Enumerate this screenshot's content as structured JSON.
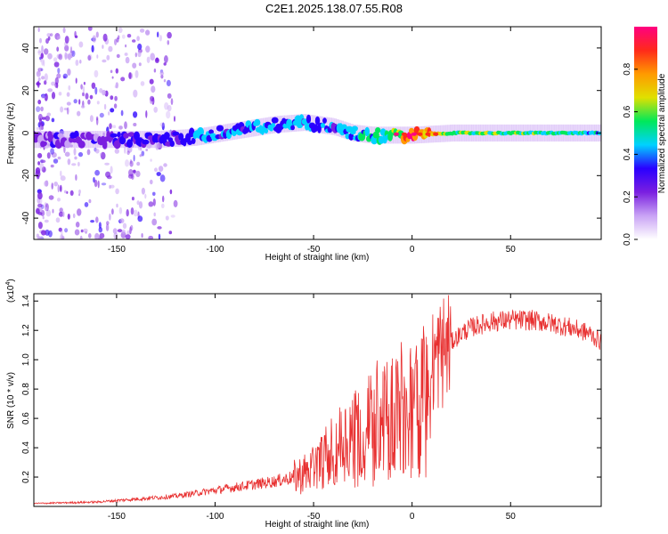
{
  "title": "C2E1.2025.138.07.55.R08",
  "colors": {
    "snr_line": "#e83030",
    "spectro_ridge": "#00d84a",
    "spectro_scatter": "#7a1fe0"
  },
  "chart_data": [
    {
      "type": "heatmap",
      "name": "spectrogram",
      "xlabel": "Height of straight line (km)",
      "ylabel": "Frequency (Hz)",
      "xlim": [
        -192,
        96
      ],
      "ylim": [
        -50,
        50
      ],
      "xticks": [
        -150,
        -100,
        -50,
        0,
        50
      ],
      "yticks": [
        -40,
        -20,
        0,
        20,
        40
      ],
      "colorbar": {
        "label": "Normalized spectral amplitude",
        "range": [
          0,
          1
        ],
        "ticks": [
          "0.0",
          "0.2",
          "0.4",
          "0.6",
          "0.8"
        ],
        "tick_values": [
          0.0,
          0.2,
          0.4,
          0.6,
          0.8
        ],
        "stops": [
          "#ffffff",
          "#c9a3f5",
          "#7a1fe0",
          "#2a00ff",
          "#00d2ff",
          "#00e85a",
          "#e0e000",
          "#ff9a00",
          "#ff2a1a",
          "#ff0080"
        ]
      },
      "ridge": {
        "x": [
          -190,
          -170,
          -150,
          -130,
          -110,
          -90,
          -70,
          -55,
          -40,
          -30,
          -20,
          -10,
          0,
          20,
          40,
          60,
          80,
          96
        ],
        "y": [
          -3,
          -3,
          -3,
          -3,
          -2,
          1,
          4,
          5,
          3,
          0,
          -1,
          -1,
          -1,
          0,
          0,
          0,
          0,
          0
        ],
        "amplitude": [
          0.2,
          0.2,
          0.25,
          0.3,
          0.35,
          0.35,
          0.4,
          0.35,
          0.35,
          0.4,
          0.45,
          0.55,
          0.9,
          0.55,
          0.55,
          0.55,
          0.5,
          0.45
        ]
      },
      "scatter_extent_x": [
        -190,
        -120
      ]
    },
    {
      "type": "line",
      "name": "snr",
      "xlabel": "Height of straight line (km)",
      "ylabel": "SNR (10 * v/v)",
      "y_multiplier": "(x10",
      "y_multiplier_exp": "4",
      "y_multiplier_close": ")",
      "xlim": [
        -192,
        96
      ],
      "ylim": [
        0,
        1.45
      ],
      "xticks": [
        -150,
        -100,
        -50,
        0,
        50
      ],
      "yticks": [
        "0.2",
        "0.4",
        "0.6",
        "0.8",
        "1.0",
        "1.2",
        "1.4"
      ],
      "ytick_values": [
        0.2,
        0.4,
        0.6,
        0.8,
        1.0,
        1.2,
        1.4
      ],
      "envelope": {
        "x": [
          -192,
          -160,
          -150,
          -140,
          -120,
          -100,
          -90,
          -80,
          -70,
          -60,
          -50,
          -45,
          -40,
          -35,
          -30,
          -25,
          -20,
          -15,
          -10,
          -5,
          0,
          5,
          10,
          15,
          20,
          25,
          30,
          40,
          50,
          60,
          70,
          80,
          90,
          96
        ],
        "y": [
          0.02,
          0.03,
          0.04,
          0.05,
          0.07,
          0.11,
          0.13,
          0.15,
          0.17,
          0.2,
          0.25,
          0.32,
          0.4,
          0.45,
          0.5,
          0.55,
          0.6,
          0.65,
          0.68,
          0.72,
          0.82,
          0.9,
          0.98,
          1.05,
          1.12,
          1.18,
          1.22,
          1.26,
          1.27,
          1.27,
          1.25,
          1.22,
          1.18,
          1.12
        ]
      }
    }
  ]
}
